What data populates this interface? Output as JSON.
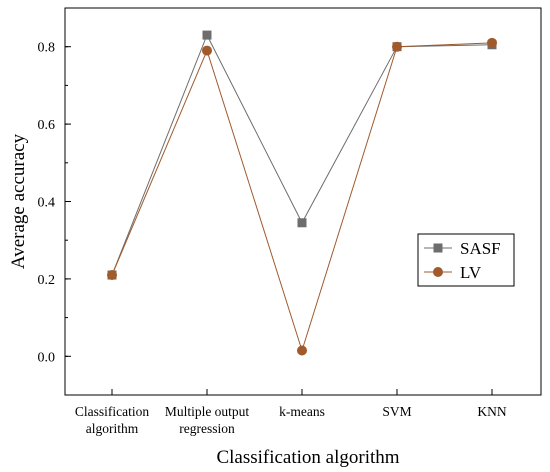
{
  "chart_data": {
    "type": "line",
    "categories": [
      "Classification algorithm",
      "Multiple output regression",
      "k-means",
      "SVM",
      "KNN"
    ],
    "category_label_lines": [
      [
        "Classification",
        "algorithm"
      ],
      [
        "Multiple output",
        "regression"
      ],
      [
        "k-means"
      ],
      [
        "SVM"
      ],
      [
        "KNN"
      ]
    ],
    "series": [
      {
        "name": "SASF",
        "values": [
          0.21,
          0.83,
          0.345,
          0.8,
          0.805
        ],
        "color": "#6d6d6d",
        "marker": "square"
      },
      {
        "name": "LV",
        "values": [
          0.21,
          0.79,
          0.015,
          0.8,
          0.81
        ],
        "color": "#a05a2c",
        "marker": "circle"
      }
    ],
    "xlabel": "Classification algorithm",
    "ylabel": "Average accuracy",
    "ylim": [
      -0.1,
      0.9
    ],
    "yticks": [
      "0.0",
      "0.2",
      "0.4",
      "0.6",
      "0.8"
    ],
    "ytick_values": [
      0.0,
      0.2,
      0.4,
      0.6,
      0.8
    ],
    "legend_position": "center-right",
    "grid": false
  }
}
